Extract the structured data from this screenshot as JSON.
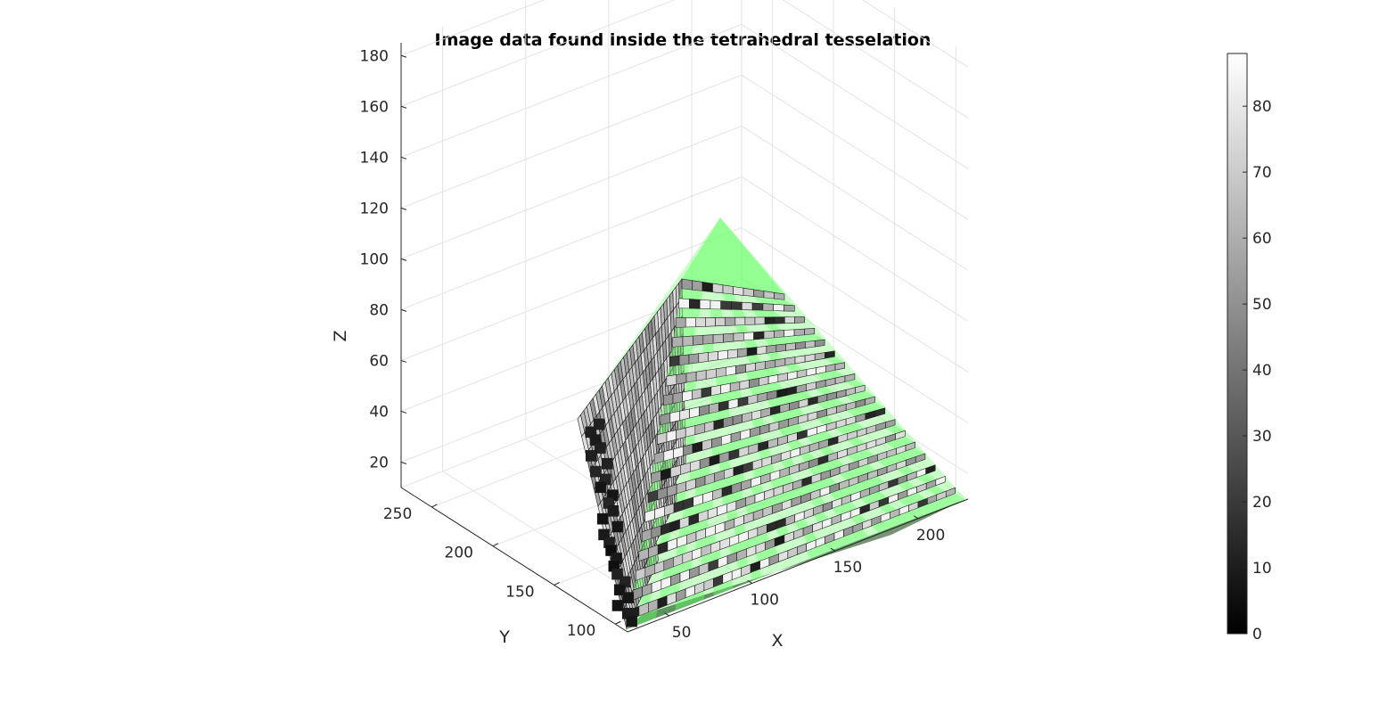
{
  "chart_data": {
    "type": "voxel-3d",
    "title": "Image data found inside the tetrahedral tesselation",
    "xlabel": "X",
    "ylabel": "Y",
    "zlabel": "Z",
    "xticks": [
      "50",
      "100",
      "150",
      "200"
    ],
    "yticks": [
      "100",
      "150",
      "200",
      "250"
    ],
    "zticks": [
      "20",
      "40",
      "60",
      "80",
      "100",
      "120",
      "140",
      "160",
      "180"
    ],
    "xlim": [
      25,
      230
    ],
    "ylim": [
      90,
      275
    ],
    "zlim": [
      10,
      185
    ],
    "colormap": "gray",
    "colorbar": {
      "ticks": [
        "0",
        "10",
        "20",
        "30",
        "40",
        "50",
        "60",
        "70",
        "80"
      ],
      "range": [
        0,
        88
      ]
    },
    "tesselation_color": "#66ff66",
    "grid": true
  }
}
